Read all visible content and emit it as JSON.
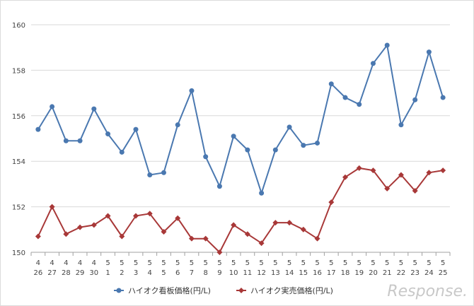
{
  "chart_data": {
    "type": "line",
    "categories": [
      [
        "4",
        "26"
      ],
      [
        "4",
        "27"
      ],
      [
        "4",
        "28"
      ],
      [
        "4",
        "29"
      ],
      [
        "4",
        "30"
      ],
      [
        "5",
        "1"
      ],
      [
        "5",
        "2"
      ],
      [
        "5",
        "3"
      ],
      [
        "5",
        "4"
      ],
      [
        "5",
        "5"
      ],
      [
        "5",
        "6"
      ],
      [
        "5",
        "7"
      ],
      [
        "5",
        "8"
      ],
      [
        "5",
        "9"
      ],
      [
        "5",
        "10"
      ],
      [
        "5",
        "11"
      ],
      [
        "5",
        "12"
      ],
      [
        "5",
        "13"
      ],
      [
        "5",
        "14"
      ],
      [
        "5",
        "15"
      ],
      [
        "5",
        "16"
      ],
      [
        "5",
        "17"
      ],
      [
        "5",
        "18"
      ],
      [
        "5",
        "19"
      ],
      [
        "5",
        "20"
      ],
      [
        "5",
        "21"
      ],
      [
        "5",
        "22"
      ],
      [
        "5",
        "23"
      ],
      [
        "5",
        "24"
      ],
      [
        "5",
        "25"
      ]
    ],
    "series": [
      {
        "name": "ハイオク看板価格(円/L)",
        "color": "#4a78b0",
        "marker": "circle",
        "values": [
          155.4,
          156.4,
          154.9,
          154.9,
          156.3,
          155.2,
          154.4,
          155.4,
          153.4,
          153.5,
          155.6,
          157.1,
          154.2,
          152.9,
          155.1,
          154.5,
          152.6,
          154.5,
          155.5,
          154.7,
          154.8,
          157.4,
          156.8,
          156.5,
          158.3,
          159.1,
          155.6,
          156.7,
          158.8,
          156.8
        ]
      },
      {
        "name": "ハイオク実売価格(円/L)",
        "color": "#a83838",
        "marker": "diamond",
        "values": [
          150.7,
          152.0,
          150.8,
          151.1,
          151.2,
          151.6,
          150.7,
          151.6,
          151.7,
          150.9,
          151.5,
          150.6,
          150.6,
          150.0,
          151.2,
          150.8,
          150.4,
          151.3,
          151.3,
          151.0,
          150.6,
          152.2,
          153.3,
          153.7,
          153.6,
          152.8,
          153.4,
          152.7,
          153.5,
          153.6
        ]
      }
    ],
    "ylim": [
      150,
      160
    ],
    "yticks": [
      "150",
      "152",
      "154",
      "156",
      "158",
      "160"
    ],
    "grid": true,
    "legend_position": "bottom",
    "watermark": "Response."
  }
}
